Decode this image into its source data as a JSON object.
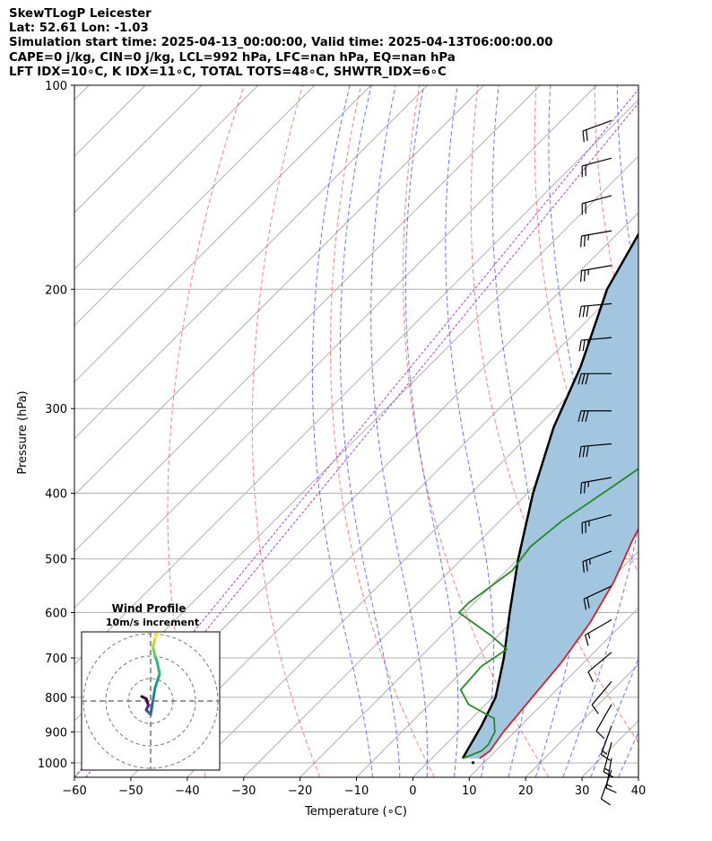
{
  "header": {
    "title": "SkewTLogP Leicester",
    "location": "Lat: 52.61   Lon: -1.03",
    "times": "Simulation start time: 2025-04-13_00:00:00, Valid time: 2025-04-13T06:00:00.00",
    "indices_1": "CAPE=0 j/kg, CIN=0 j/kg, LCL=992 hPa, LFC=nan hPa, EQ=nan hPa",
    "indices_2": "LFT IDX=10∘C, K IDX=11∘C, TOTAL TOTS=48∘C, SHWTR_IDX=6∘C"
  },
  "chart_data": {
    "type": "line",
    "title": "SkewTLogP Leicester",
    "xlabel": "Temperature (∘C)",
    "ylabel": "Pressure (hPa)",
    "xlim": [
      -60,
      40
    ],
    "ylim": [
      1050,
      100
    ],
    "y_scale": "log",
    "x_ticks": [
      "−60",
      "−50",
      "−40",
      "−30",
      "−20",
      "−10",
      "0",
      "10",
      "20",
      "30",
      "40"
    ],
    "y_ticks": [
      "100",
      "200",
      "300",
      "400",
      "500",
      "600",
      "700",
      "800",
      "900",
      "1000"
    ],
    "grid": true,
    "colors": {
      "temperature": "#e41a1c",
      "dewpoint": "#228b22",
      "parcel": "#000000",
      "fill": "#a2c6e0",
      "isotherm": "#b0b0b0",
      "dry_adiabat": "#ff5555",
      "moist_adiabat": "#4455ff",
      "mixing_ratio": "#aa44cc",
      "barb": "#000000"
    },
    "series": [
      {
        "key": "temperature",
        "points": [
          [
            8.5,
            985
          ],
          [
            9,
            960
          ],
          [
            8,
            900
          ],
          [
            7,
            800
          ],
          [
            6,
            710
          ],
          [
            4,
            620
          ],
          [
            1,
            540
          ],
          [
            -3,
            470
          ],
          [
            -7,
            400
          ],
          [
            -9.5,
            340
          ],
          [
            -10.5,
            300
          ],
          [
            -10,
            270
          ],
          [
            -8,
            235
          ],
          [
            -5,
            205
          ],
          [
            -1.5,
            180
          ],
          [
            2,
            160
          ],
          [
            5,
            140
          ],
          [
            7.5,
            120
          ],
          [
            10,
            110
          ],
          [
            12.5,
            103
          ],
          [
            13.3,
            100
          ]
        ],
        "surface_temp_f": 0
      },
      {
        "key": "dewpoint",
        "points": [
          [
            5.5,
            985
          ],
          [
            7.5,
            960
          ],
          [
            7.6,
            940
          ],
          [
            6.5,
            900
          ],
          [
            4,
            860
          ],
          [
            -3,
            820
          ],
          [
            -7,
            780
          ],
          [
            -7.5,
            720
          ],
          [
            -6,
            680
          ],
          [
            -11,
            650
          ],
          [
            -21,
            600
          ],
          [
            -21,
            580
          ],
          [
            -19,
            520
          ],
          [
            -20,
            480
          ],
          [
            -19,
            440
          ],
          [
            -16,
            390
          ],
          [
            -13.5,
            350
          ],
          [
            -12.5,
            320
          ],
          [
            -12,
            280
          ],
          [
            -11,
            250
          ],
          [
            -12,
            225
          ],
          [
            -14,
            200
          ],
          [
            -13,
            180
          ],
          [
            -12,
            170
          ],
          [
            -10.5,
            145
          ],
          [
            -6.5,
            120
          ],
          [
            -4,
            110
          ],
          [
            -1.5,
            100
          ]
        ]
      },
      {
        "key": "parcel",
        "points": [
          [
            5.5,
            985
          ],
          [
            3,
            880
          ],
          [
            0.5,
            800
          ],
          [
            -5,
            700
          ],
          [
            -12,
            600
          ],
          [
            -20,
            500
          ],
          [
            -29,
            400
          ],
          [
            -37,
            320
          ],
          [
            -43,
            260
          ],
          [
            -52,
            200
          ],
          [
            -57,
            160
          ],
          [
            -60,
            100
          ]
        ]
      }
    ],
    "wind_barbs": [
      {
        "p": 110,
        "speed": 20,
        "dir": 250
      },
      {
        "p": 125,
        "speed": 20,
        "dir": 255
      },
      {
        "p": 142,
        "speed": 20,
        "dir": 255
      },
      {
        "p": 160,
        "speed": 25,
        "dir": 260
      },
      {
        "p": 180,
        "speed": 25,
        "dir": 260
      },
      {
        "p": 205,
        "speed": 30,
        "dir": 265
      },
      {
        "p": 230,
        "speed": 30,
        "dir": 265
      },
      {
        "p": 260,
        "speed": 30,
        "dir": 270
      },
      {
        "p": 295,
        "speed": 30,
        "dir": 270
      },
      {
        "p": 330,
        "speed": 30,
        "dir": 265
      },
      {
        "p": 370,
        "speed": 25,
        "dir": 260
      },
      {
        "p": 420,
        "speed": 25,
        "dir": 255
      },
      {
        "p": 475,
        "speed": 25,
        "dir": 250
      },
      {
        "p": 535,
        "speed": 20,
        "dir": 245
      },
      {
        "p": 600,
        "speed": 15,
        "dir": 240
      },
      {
        "p": 670,
        "speed": 10,
        "dir": 230
      },
      {
        "p": 740,
        "speed": 10,
        "dir": 220
      },
      {
        "p": 800,
        "speed": 10,
        "dir": 210
      },
      {
        "p": 860,
        "speed": 15,
        "dir": 200
      },
      {
        "p": 910,
        "speed": 15,
        "dir": 195
      },
      {
        "p": 960,
        "speed": 15,
        "dir": 190
      },
      {
        "p": 1000,
        "speed": 10,
        "dir": 200
      }
    ],
    "hodograph": {
      "title": "Wind Profile",
      "subtitle": "10m/s increment",
      "rings": [
        10,
        20,
        30
      ],
      "points": [
        [
          -4,
          2
        ],
        [
          -2,
          1
        ],
        [
          -1,
          -2
        ],
        [
          -2,
          -4
        ],
        [
          -1,
          -5
        ],
        [
          0,
          -6
        ],
        [
          1,
          0
        ],
        [
          2,
          6
        ],
        [
          4,
          12
        ],
        [
          3,
          17
        ],
        [
          2,
          20
        ],
        [
          1,
          24
        ],
        [
          2,
          28
        ],
        [
          3,
          30
        ]
      ]
    }
  }
}
